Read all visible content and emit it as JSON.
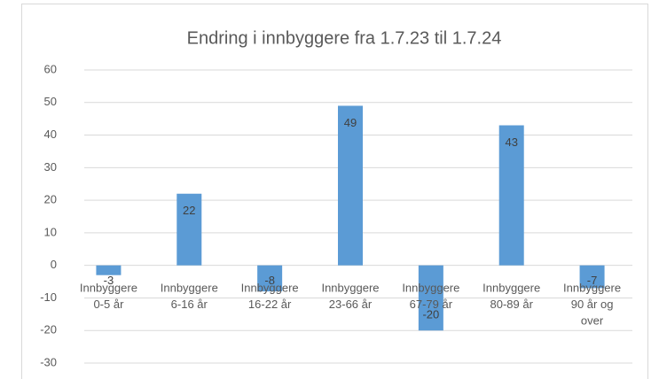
{
  "chart_data": {
    "type": "bar",
    "title": "Endring i innbyggere fra 1.7.23 til 1.7.24",
    "categories": [
      [
        "Innbyggere",
        "0-5 år"
      ],
      [
        "Innbyggere",
        "6-16 år"
      ],
      [
        "Innbyggere",
        "16-22 år"
      ],
      [
        "Innbyggere",
        "23-66 år"
      ],
      [
        "Innbyggere",
        "67-79 år"
      ],
      [
        "Innbyggere",
        "80-89 år"
      ],
      [
        "Innbyggere",
        "90 år og",
        "over"
      ]
    ],
    "values": [
      -3,
      22,
      -8,
      49,
      -20,
      43,
      -7
    ],
    "color": "#5b9bd5",
    "ylim": [
      -30,
      60
    ],
    "yticks": [
      -30,
      -20,
      -10,
      0,
      10,
      20,
      30,
      40,
      50,
      60
    ],
    "grid": true
  }
}
